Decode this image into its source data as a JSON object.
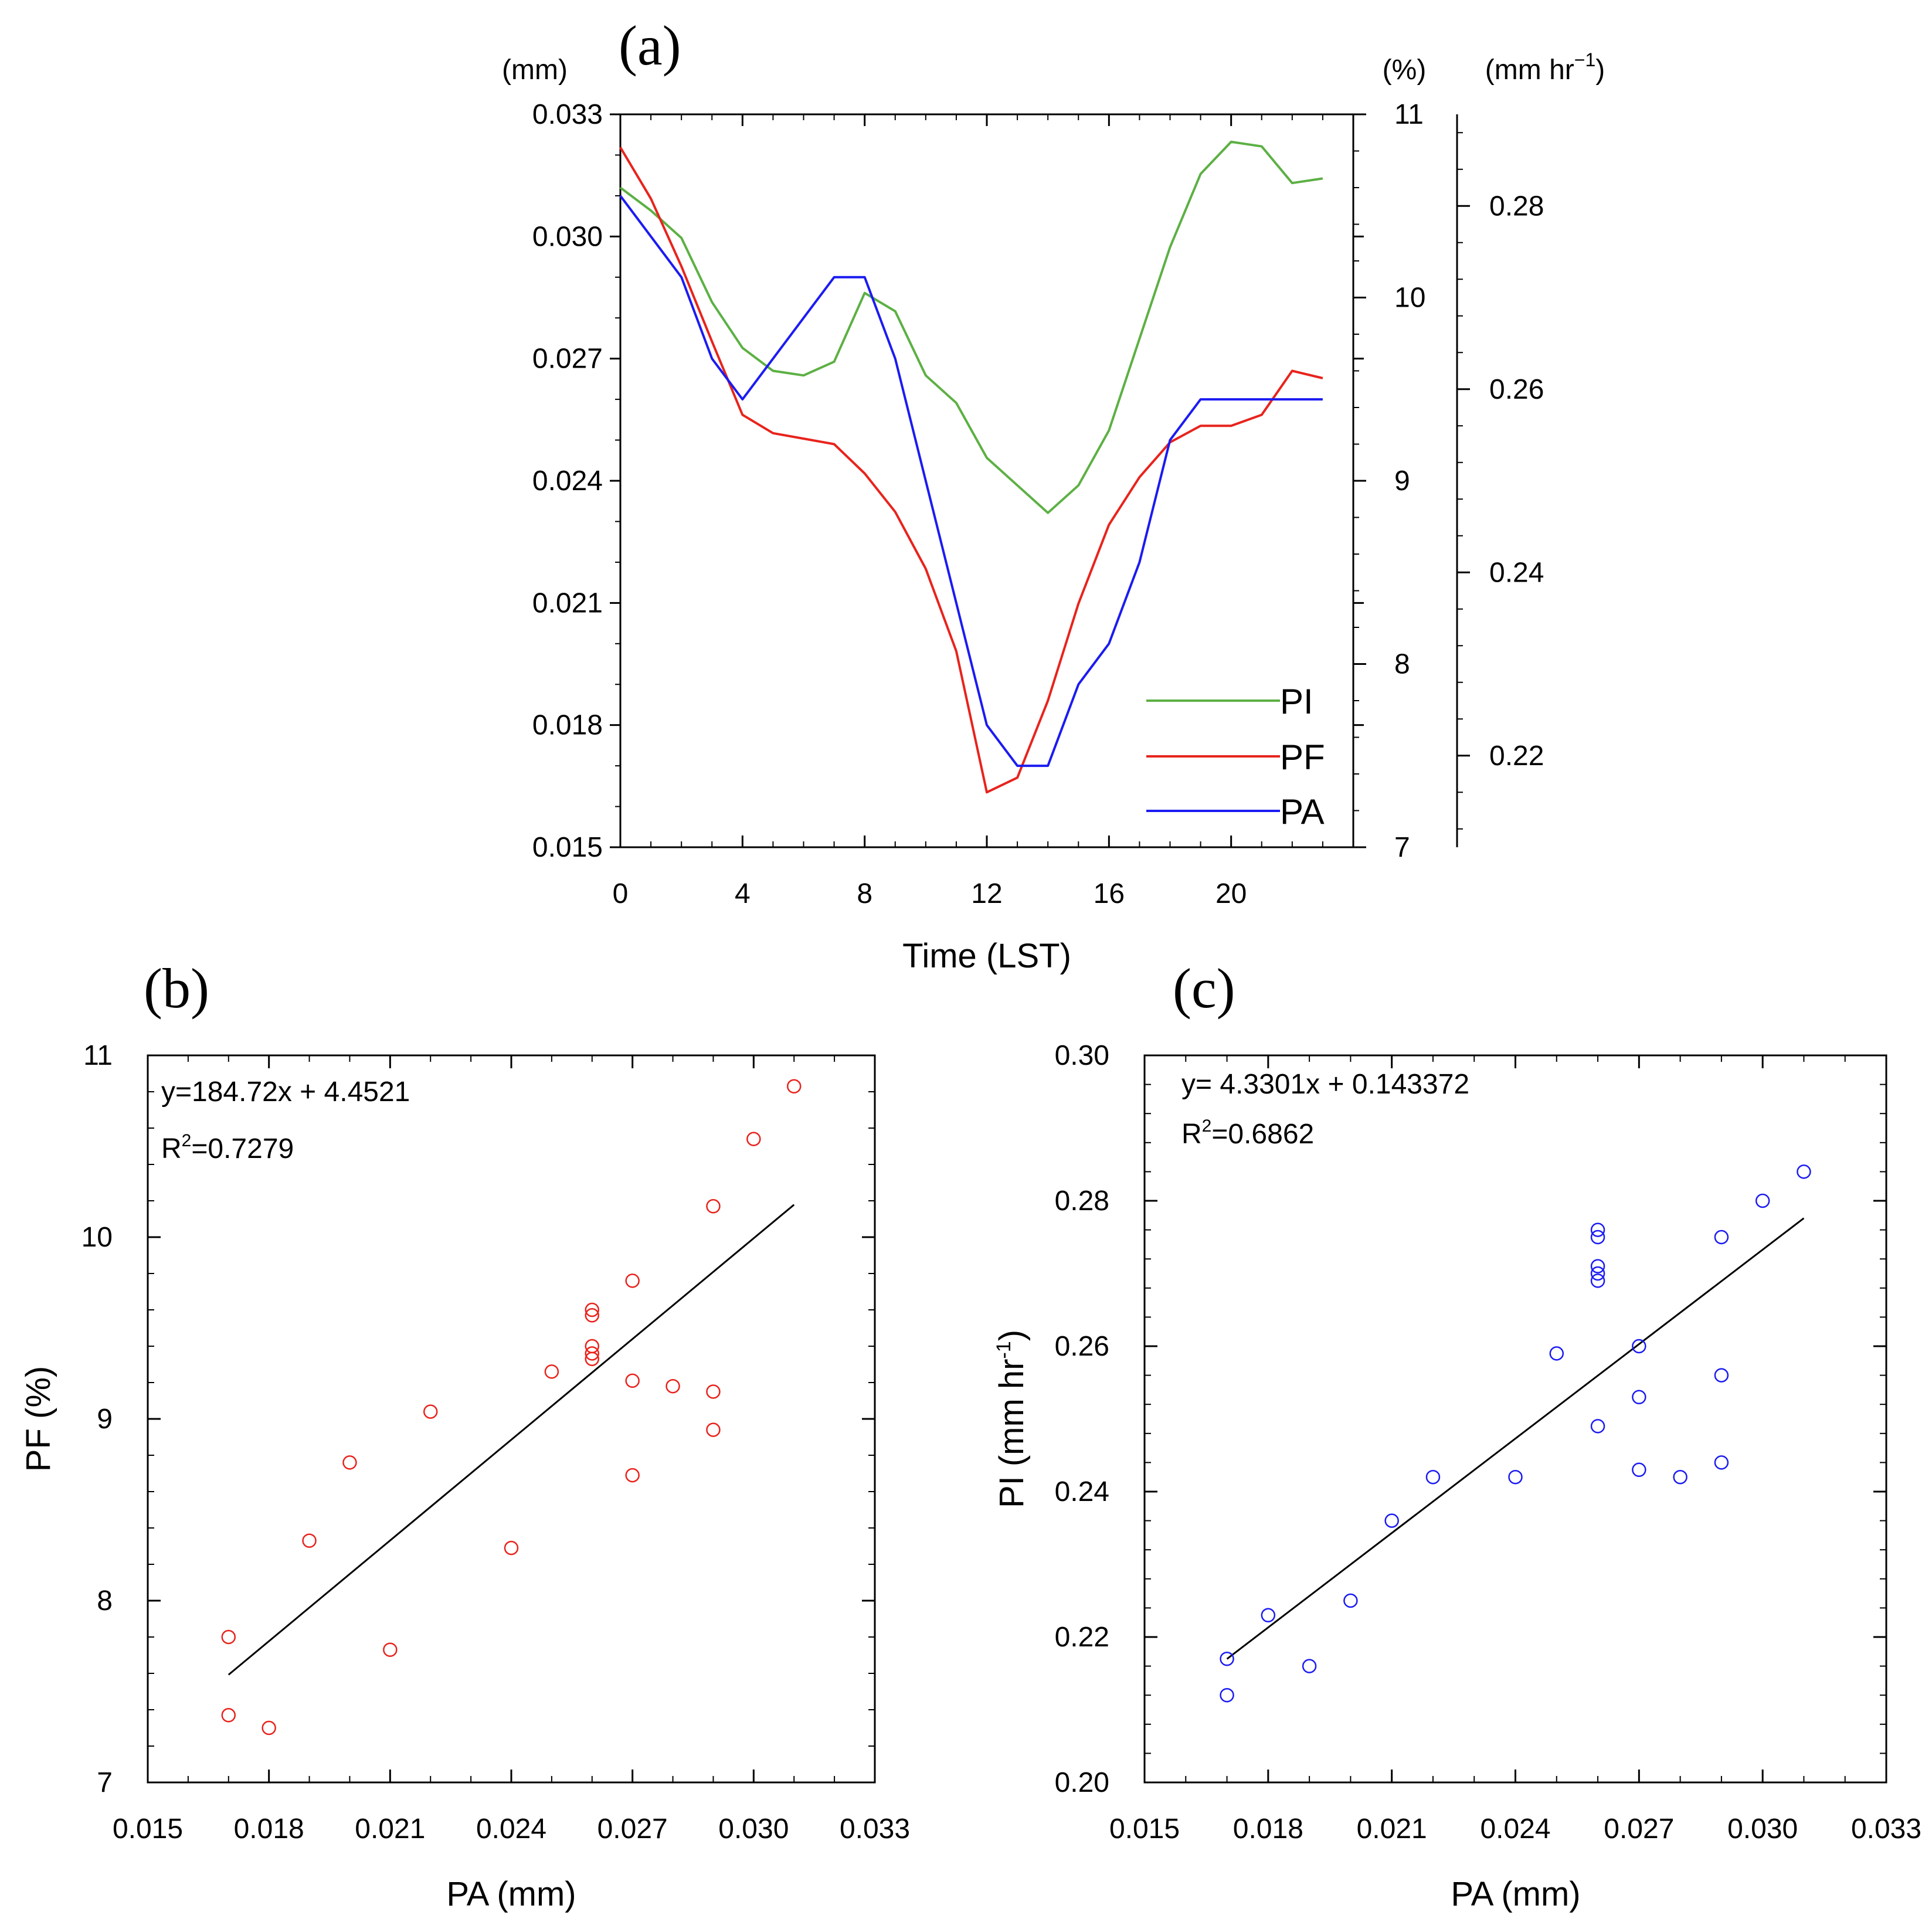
{
  "chart_data": [
    {
      "type": "line",
      "panel_label": "(a)",
      "xlabel": "Time (LST)",
      "x": [
        0,
        1,
        2,
        3,
        4,
        5,
        6,
        7,
        8,
        9,
        10,
        11,
        12,
        13,
        14,
        15,
        16,
        17,
        18,
        19,
        20,
        21,
        22,
        23
      ],
      "xlim": [
        0,
        24
      ],
      "xticks": [
        "0",
        "4",
        "8",
        "12",
        "16",
        "20"
      ],
      "axes": {
        "left": {
          "unit": "(mm)",
          "lim": [
            0.015,
            0.033
          ],
          "ticks": [
            "0.015",
            "0.018",
            "0.021",
            "0.024",
            "0.027",
            "0.030",
            "0.033"
          ],
          "tick_values": [
            0.015,
            0.018,
            0.021,
            0.024,
            0.027,
            0.03,
            0.033
          ]
        },
        "right": {
          "unit": "(%)",
          "lim": [
            7,
            11
          ],
          "ticks": [
            "7",
            "8",
            "9",
            "10",
            "11"
          ],
          "tick_values": [
            7,
            8,
            9,
            10,
            11
          ]
        },
        "far_right": {
          "unit_base": "(mm hr",
          "unit_sup": "−1",
          "unit_close": ")",
          "lim": [
            0.21,
            0.29
          ],
          "ticks": [
            "0.22",
            "0.24",
            "0.26",
            "0.28"
          ],
          "tick_values": [
            0.22,
            0.24,
            0.26,
            0.28
          ]
        }
      },
      "series": [
        {
          "name": "PI",
          "axis": "far_right",
          "color": "#5cb043",
          "values": [
            0.282,
            0.2795,
            0.2765,
            0.2695,
            0.2645,
            0.262,
            0.2615,
            0.263,
            0.2705,
            0.2685,
            0.2615,
            0.2585,
            0.2525,
            0.2495,
            0.2465,
            0.2495,
            0.2555,
            0.2655,
            0.2755,
            0.2835,
            0.287,
            0.2865,
            0.2825,
            0.283
          ]
        },
        {
          "name": "PF",
          "axis": "right",
          "color": "#e8231c",
          "values": [
            10.82,
            10.54,
            10.17,
            9.76,
            9.36,
            9.26,
            9.23,
            9.2,
            9.04,
            8.83,
            8.52,
            8.07,
            7.3,
            7.38,
            7.8,
            8.33,
            8.76,
            9.02,
            9.21,
            9.3,
            9.3,
            9.36,
            9.6,
            9.56
          ]
        },
        {
          "name": "PA",
          "axis": "left",
          "color": "#1b1bf2",
          "values": [
            0.031,
            0.03,
            0.029,
            0.027,
            0.026,
            0.027,
            0.028,
            0.029,
            0.029,
            0.027,
            0.024,
            0.021,
            0.018,
            0.017,
            0.017,
            0.019,
            0.02,
            0.022,
            0.025,
            0.026,
            0.026,
            0.026,
            0.026,
            0.026
          ]
        }
      ],
      "legend": [
        "PI",
        "PF",
        "PA"
      ],
      "legend_position": "lower-right"
    },
    {
      "type": "scatter",
      "panel_label": "(b)",
      "xlabel": "PA (mm)",
      "ylabel": "PF  (%)",
      "xlim": [
        0.015,
        0.033
      ],
      "ylim": [
        7,
        11
      ],
      "xticks": [
        "0.015",
        "0.018",
        "0.021",
        "0.024",
        "0.027",
        "0.030",
        "0.033"
      ],
      "yticks": [
        "7",
        "8",
        "9",
        "10",
        "11"
      ],
      "marker_color": "#e8231c",
      "points": [
        [
          0.017,
          7.8
        ],
        [
          0.017,
          7.37
        ],
        [
          0.018,
          7.3
        ],
        [
          0.019,
          8.33
        ],
        [
          0.02,
          8.76
        ],
        [
          0.021,
          7.73
        ],
        [
          0.022,
          9.04
        ],
        [
          0.024,
          8.29
        ],
        [
          0.025,
          9.26
        ],
        [
          0.026,
          9.6
        ],
        [
          0.026,
          9.57
        ],
        [
          0.026,
          9.4
        ],
        [
          0.026,
          9.36
        ],
        [
          0.026,
          9.33
        ],
        [
          0.027,
          9.76
        ],
        [
          0.027,
          9.21
        ],
        [
          0.027,
          8.69
        ],
        [
          0.028,
          9.18
        ],
        [
          0.029,
          10.17
        ],
        [
          0.029,
          9.15
        ],
        [
          0.029,
          8.94
        ],
        [
          0.03,
          10.54
        ],
        [
          0.031,
          10.83
        ]
      ],
      "fit": {
        "slope": 184.72,
        "intercept": 4.4521,
        "x_range": [
          0.017,
          0.031
        ]
      },
      "equation": "y=184.72x + 4.4521",
      "r2_value": "=0.7279",
      "r2_label": "R",
      "r2_sup": "2"
    },
    {
      "type": "scatter",
      "panel_label": "(c)",
      "xlabel": "PA (mm)",
      "ylabel_base": "PI (mm hr",
      "ylabel_sup": "-1",
      "ylabel_close": ")",
      "xlim": [
        0.015,
        0.033
      ],
      "ylim": [
        0.2,
        0.3
      ],
      "xticks": [
        "0.015",
        "0.018",
        "0.021",
        "0.024",
        "0.027",
        "0.030",
        "0.033"
      ],
      "yticks": [
        "0.20",
        "0.22",
        "0.24",
        "0.26",
        "0.28",
        "0.30"
      ],
      "marker_color": "#1b1bf2",
      "points": [
        [
          0.017,
          0.217
        ],
        [
          0.017,
          0.212
        ],
        [
          0.018,
          0.223
        ],
        [
          0.019,
          0.216
        ],
        [
          0.02,
          0.225
        ],
        [
          0.021,
          0.236
        ],
        [
          0.022,
          0.242
        ],
        [
          0.024,
          0.242
        ],
        [
          0.025,
          0.259
        ],
        [
          0.026,
          0.276
        ],
        [
          0.026,
          0.275
        ],
        [
          0.026,
          0.271
        ],
        [
          0.026,
          0.27
        ],
        [
          0.026,
          0.269
        ],
        [
          0.026,
          0.249
        ],
        [
          0.027,
          0.26
        ],
        [
          0.027,
          0.253
        ],
        [
          0.027,
          0.243
        ],
        [
          0.028,
          0.242
        ],
        [
          0.029,
          0.275
        ],
        [
          0.029,
          0.256
        ],
        [
          0.029,
          0.244
        ],
        [
          0.03,
          0.28
        ],
        [
          0.031,
          0.284
        ]
      ],
      "fit": {
        "slope": 4.3301,
        "intercept": 0.143372,
        "x_range": [
          0.017,
          0.031
        ]
      },
      "equation": "y= 4.3301x + 0.143372",
      "r2_value": "=0.6862",
      "r2_label": "R",
      "r2_sup": "2"
    }
  ]
}
